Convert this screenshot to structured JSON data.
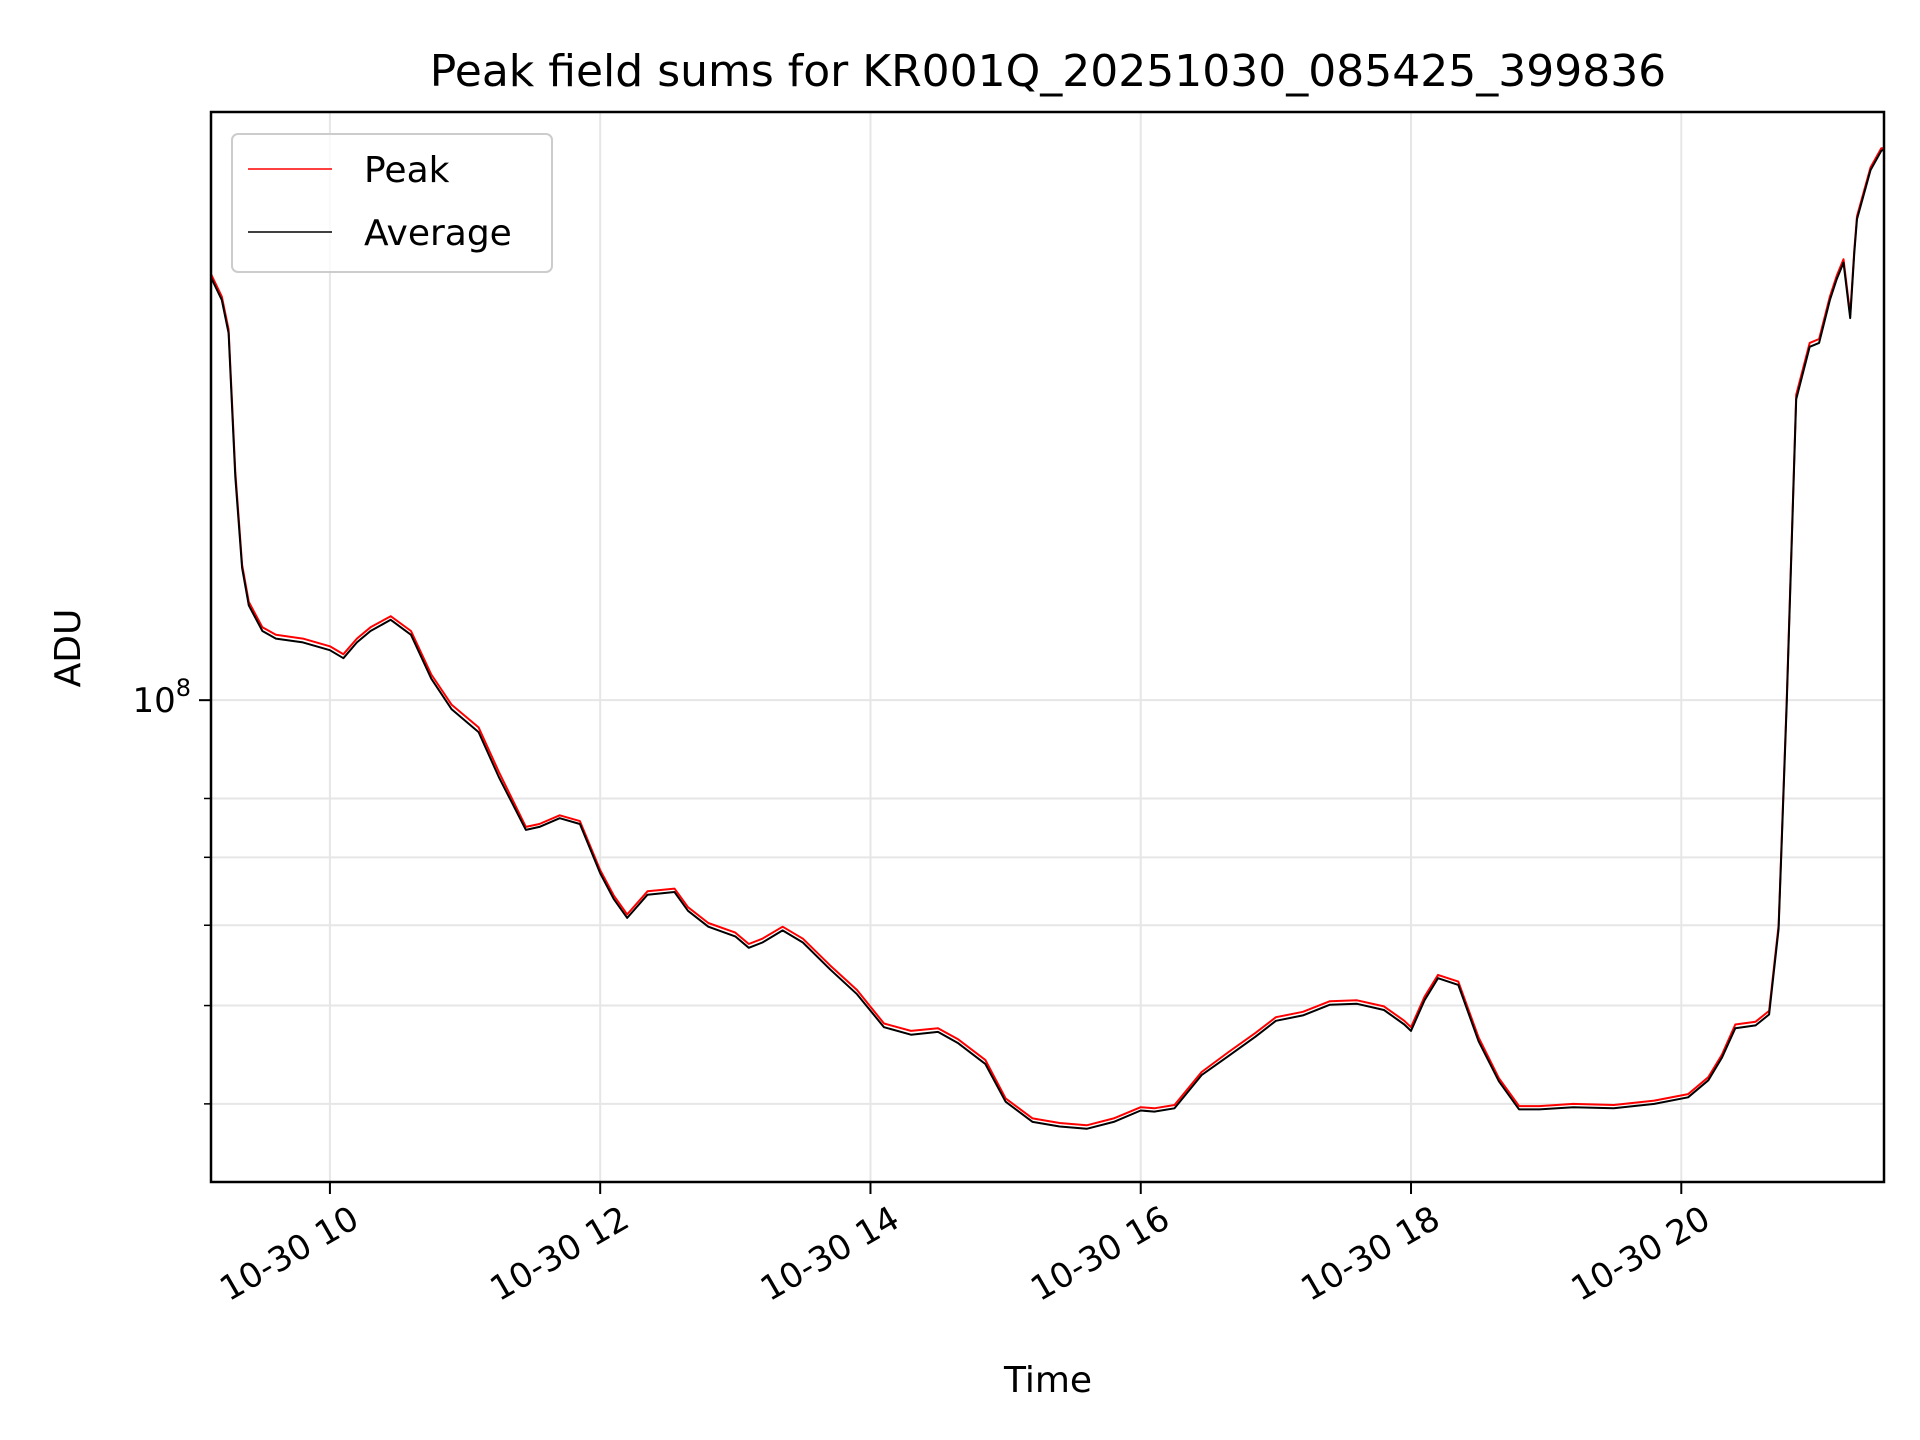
{
  "chart_data": {
    "type": "line",
    "title": "Peak field sums for KR001Q_20251030_085425_399836",
    "xlabel": "Time",
    "ylabel": "ADU",
    "x_unit": "hour of 10-30",
    "xlim": [
      9.12,
      21.5
    ],
    "y_scale": "log",
    "ylim": [
      33500000,
      380000000
    ],
    "x_ticks": [
      {
        "value": 10,
        "label": "10-30 10"
      },
      {
        "value": 12,
        "label": "10-30 12"
      },
      {
        "value": 14,
        "label": "10-30 14"
      },
      {
        "value": 16,
        "label": "10-30 16"
      },
      {
        "value": 18,
        "label": "10-30 18"
      },
      {
        "value": 20,
        "label": "10-30 20"
      }
    ],
    "y_major_ticks": [
      {
        "value": 100000000,
        "base": "10",
        "exponent": "8"
      }
    ],
    "y_minor_ticks": [
      40000000,
      50000000,
      60000000,
      70000000,
      80000000
    ],
    "grid": true,
    "legend": {
      "placement": "top-left",
      "entries": [
        {
          "label": "Peak",
          "color": "#ff0000"
        },
        {
          "label": "Average",
          "color": "#000000"
        }
      ]
    },
    "series": [
      {
        "name": "Peak",
        "color": "#ff0000",
        "x": [
          9.12,
          9.2,
          9.25,
          9.3,
          9.35,
          9.4,
          9.5,
          9.6,
          9.8,
          10.0,
          10.1,
          10.2,
          10.3,
          10.45,
          10.6,
          10.75,
          10.9,
          11.1,
          11.25,
          11.45,
          11.55,
          11.7,
          11.85,
          12.0,
          12.1,
          12.2,
          12.35,
          12.55,
          12.65,
          12.8,
          13.0,
          13.1,
          13.2,
          13.35,
          13.5,
          13.7,
          13.9,
          14.1,
          14.3,
          14.5,
          14.65,
          14.85,
          15.0,
          15.2,
          15.4,
          15.6,
          15.8,
          16.0,
          16.1,
          16.25,
          16.45,
          16.65,
          16.85,
          17.0,
          17.2,
          17.4,
          17.6,
          17.8,
          17.95,
          18.0,
          18.1,
          18.2,
          18.35,
          18.5,
          18.65,
          18.8,
          18.95,
          19.2,
          19.5,
          19.8,
          20.05,
          20.2,
          20.3,
          20.4,
          20.55,
          20.65,
          20.72,
          20.78,
          20.85,
          20.95,
          21.02,
          21.1,
          21.15,
          21.2,
          21.25,
          21.28,
          21.3,
          21.4,
          21.48,
          21.5
        ],
        "y": [
          263000000,
          250000000,
          232000000,
          168000000,
          136000000,
          125000000,
          118000000,
          116000000,
          115000000,
          113000000,
          111000000,
          115000000,
          118000000,
          121000000,
          117000000,
          106000000,
          99000000,
          94000000,
          85000000,
          75000000,
          75500000,
          77000000,
          76000000,
          68000000,
          64200000,
          61500000,
          64800000,
          65200000,
          62500000,
          60300000,
          59000000,
          57500000,
          58200000,
          59800000,
          58200000,
          54800000,
          51800000,
          48000000,
          47200000,
          47500000,
          46300000,
          44200000,
          40500000,
          38700000,
          38300000,
          38100000,
          38700000,
          39700000,
          39600000,
          39900000,
          43000000,
          45000000,
          47000000,
          48700000,
          49300000,
          50500000,
          50600000,
          49900000,
          48300000,
          47600000,
          51000000,
          53600000,
          52800000,
          46500000,
          42400000,
          39800000,
          39800000,
          40000000,
          39900000,
          40300000,
          40900000,
          42500000,
          44700000,
          47900000,
          48200000,
          49400000,
          60000000,
          100000000,
          200000000,
          225000000,
          227000000,
          250000000,
          262000000,
          272000000,
          240000000,
          278000000,
          300000000,
          335000000,
          350000000,
          350000000
        ]
      },
      {
        "name": "Average",
        "color": "#000000",
        "x": [
          9.12,
          9.2,
          9.25,
          9.3,
          9.35,
          9.4,
          9.5,
          9.6,
          9.8,
          10.0,
          10.1,
          10.2,
          10.3,
          10.45,
          10.6,
          10.75,
          10.9,
          11.1,
          11.25,
          11.45,
          11.55,
          11.7,
          11.85,
          12.0,
          12.1,
          12.2,
          12.35,
          12.55,
          12.65,
          12.8,
          13.0,
          13.1,
          13.2,
          13.35,
          13.5,
          13.7,
          13.9,
          14.1,
          14.3,
          14.5,
          14.65,
          14.85,
          15.0,
          15.2,
          15.4,
          15.6,
          15.8,
          16.0,
          16.1,
          16.25,
          16.45,
          16.65,
          16.85,
          17.0,
          17.2,
          17.4,
          17.6,
          17.8,
          17.95,
          18.0,
          18.1,
          18.2,
          18.35,
          18.5,
          18.65,
          18.8,
          18.95,
          19.2,
          19.5,
          19.8,
          20.05,
          20.2,
          20.3,
          20.4,
          20.55,
          20.65,
          20.72,
          20.78,
          20.85,
          20.95,
          21.02,
          21.1,
          21.15,
          21.2,
          21.25,
          21.28,
          21.3,
          21.4,
          21.48,
          21.5
        ],
        "y": [
          261000000,
          248000000,
          230000000,
          166000000,
          135000000,
          124000000,
          117000000,
          115000000,
          114000000,
          112000000,
          110000000,
          114000000,
          117000000,
          120000000,
          116000000,
          105000000,
          98000000,
          93000000,
          84000000,
          74500000,
          75000000,
          76500000,
          75500000,
          67500000,
          63700000,
          61000000,
          64300000,
          64700000,
          62000000,
          59800000,
          58500000,
          57000000,
          57700000,
          59300000,
          57700000,
          54300000,
          51300000,
          47600000,
          46800000,
          47100000,
          45900000,
          43800000,
          40200000,
          38400000,
          38000000,
          37800000,
          38400000,
          39400000,
          39300000,
          39600000,
          42700000,
          44600000,
          46600000,
          48300000,
          48900000,
          50100000,
          50200000,
          49500000,
          47900000,
          47200000,
          50600000,
          53200000,
          52400000,
          46100000,
          42100000,
          39500000,
          39500000,
          39700000,
          39600000,
          40000000,
          40600000,
          42200000,
          44400000,
          47500000,
          47800000,
          49000000,
          59500000,
          99000000,
          198000000,
          223000000,
          225000000,
          248000000,
          260000000,
          270000000,
          238000000,
          276000000,
          298000000,
          333000000,
          348000000,
          349000000
        ]
      }
    ]
  }
}
